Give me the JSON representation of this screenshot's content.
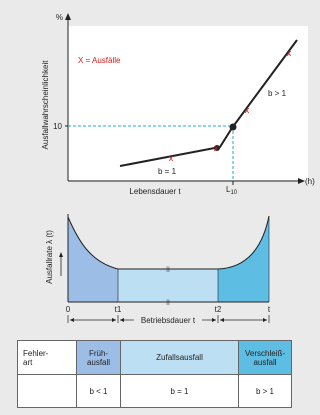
{
  "top_chart": {
    "y_axis_title": "Ausfallwahrscheinlichkeit",
    "y_unit": "%",
    "y_tick": "10",
    "x_axis_title": "Lebensdauer t",
    "x_unit": "(h)",
    "x_marker_main": "L",
    "x_marker_sub": "10",
    "legend": "X = Ausfälle",
    "label_low": "b = 1",
    "label_high": "b > 1",
    "color_line": "#222222",
    "color_failure": "#d21c1c",
    "color_dash": "#2aa3d8"
  },
  "bathtub": {
    "y_axis_title": "Ausfallrate λ (t)",
    "x_tick_0": "0",
    "x_tick_t1": "t1",
    "x_tick_t2": "t2",
    "x_tick_t": "t",
    "duration_label": "Betriebsdauer t",
    "color_early": "#9cbde6",
    "color_random": "#bcdff4",
    "color_wear": "#5dbde3"
  },
  "fault_table": {
    "header_label": "Fehler-\nart",
    "early": "Früh-\nausfall",
    "random": "Zufallsausfall",
    "wear": "Verschleiß-\nausfall",
    "b_early": "b < 1",
    "b_random": "b = 1",
    "b_wear": "b > 1"
  }
}
